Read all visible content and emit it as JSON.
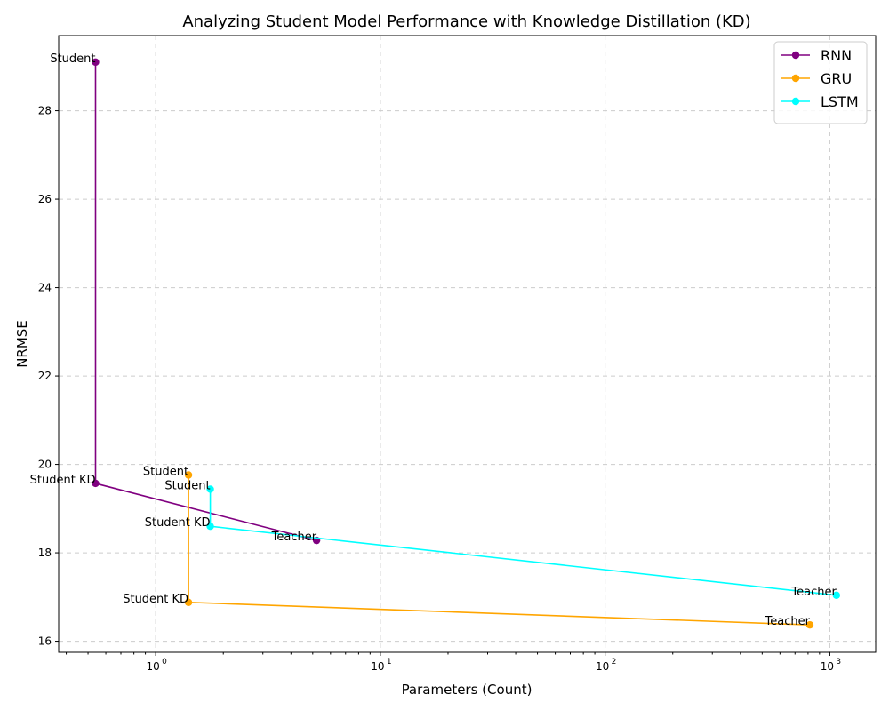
{
  "chart_data": {
    "type": "line",
    "title": "Analyzing Student Model Performance with Knowledge Distillation (KD)",
    "xlabel": "Parameters (Count)",
    "ylabel": "NRMSE",
    "xscale": "log",
    "xlim": [
      0.37,
      1600
    ],
    "ylim": [
      15.75,
      29.7
    ],
    "grid": true,
    "legend_position": "top-right",
    "x_ticks": [
      {
        "value": 1,
        "base": "10",
        "exp": "0"
      },
      {
        "value": 10,
        "base": "10",
        "exp": "1"
      },
      {
        "value": 100,
        "base": "10",
        "exp": "2"
      },
      {
        "value": 1000,
        "base": "10",
        "exp": "3"
      }
    ],
    "y_ticks": [
      16,
      18,
      20,
      22,
      24,
      26,
      28
    ],
    "series": [
      {
        "name": "RNN",
        "color": "#800080",
        "points": [
          {
            "x": 0.54,
            "y": 29.1,
            "label": "Student"
          },
          {
            "x": 0.54,
            "y": 19.57,
            "label": "Student KD"
          },
          {
            "x": 5.2,
            "y": 18.28,
            "label": "Teacher"
          }
        ]
      },
      {
        "name": "GRU",
        "color": "#FFA500",
        "points": [
          {
            "x": 1.4,
            "y": 19.76,
            "label": "Student"
          },
          {
            "x": 1.4,
            "y": 16.88,
            "label": "Student KD"
          },
          {
            "x": 815,
            "y": 16.37,
            "label": "Teacher"
          }
        ]
      },
      {
        "name": "LSTM",
        "color": "#00FFFF",
        "points": [
          {
            "x": 1.75,
            "y": 19.44,
            "label": "Student"
          },
          {
            "x": 1.75,
            "y": 18.6,
            "label": "Student KD"
          },
          {
            "x": 1070,
            "y": 17.04,
            "label": "Teacher"
          }
        ]
      }
    ]
  }
}
